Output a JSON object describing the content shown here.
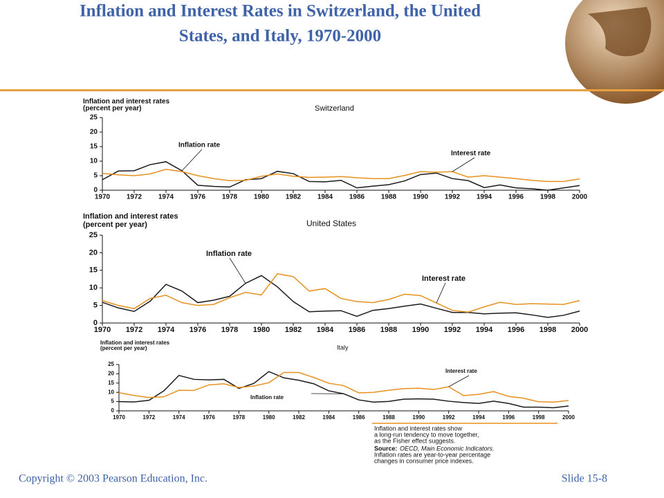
{
  "title": [
    "Inflation and Interest Rates in Switzerland, the United",
    "States, and Italy, 1970-2000"
  ],
  "footer": {
    "copyright": "Copyright © 2003 Pearson Education, Inc.",
    "slide": "Slide 15-8"
  },
  "note": {
    "lines": [
      "Inflation and interest rates show",
      "a long-run tendency to move together,",
      "as the Fisher effect suggests."
    ],
    "source_label": "Source:",
    "source_text": "OECD, Main Economic Indicators.",
    "extra": [
      "Inflation rates are year-to-year percentage",
      "changes in consumer price indexes."
    ]
  },
  "chart_data": [
    {
      "type": "line",
      "title": "Switzerland",
      "y_label": [
        "Inflation and interest rates",
        "(percent per year)"
      ],
      "x": [
        1970,
        1971,
        1972,
        1973,
        1974,
        1975,
        1976,
        1977,
        1978,
        1979,
        1980,
        1981,
        1982,
        1983,
        1984,
        1985,
        1986,
        1987,
        1988,
        1989,
        1990,
        1991,
        1992,
        1993,
        1994,
        1995,
        1996,
        1997,
        1998,
        1999,
        2000
      ],
      "xlim": [
        1970,
        2000
      ],
      "xticks": [
        1970,
        1972,
        1974,
        1976,
        1978,
        1980,
        1982,
        1984,
        1986,
        1988,
        1990,
        1992,
        1994,
        1996,
        1998,
        2000
      ],
      "ylim": [
        0,
        25
      ],
      "yticks": [
        0,
        5,
        10,
        15,
        20,
        25
      ],
      "series": [
        {
          "name": "Inflation rate",
          "color": "#1a1a1a",
          "values": [
            3.6,
            6.6,
            6.7,
            8.8,
            9.8,
            6.7,
            1.7,
            1.3,
            1.1,
            3.6,
            4.0,
            6.5,
            5.7,
            3.0,
            2.9,
            3.4,
            0.8,
            1.4,
            1.9,
            3.2,
            5.4,
            5.9,
            4.0,
            3.3,
            0.9,
            1.8,
            0.8,
            0.5,
            0.0,
            0.8,
            1.6
          ]
        },
        {
          "name": "Interest rate",
          "color": "#e8901e",
          "values": [
            5.8,
            5.3,
            5.0,
            5.6,
            7.2,
            6.4,
            5.0,
            4.0,
            3.3,
            3.4,
            4.8,
            5.6,
            4.8,
            4.4,
            4.5,
            4.7,
            4.3,
            4.0,
            4.0,
            5.1,
            6.4,
            6.2,
            6.4,
            4.5,
            5.0,
            4.5,
            4.0,
            3.4,
            3.0,
            3.0,
            3.9
          ]
        }
      ]
    },
    {
      "type": "line",
      "title": "United States",
      "y_label": [
        "Inflation and interest rates",
        "(percent per year)"
      ],
      "x": [
        1970,
        1971,
        1972,
        1973,
        1974,
        1975,
        1976,
        1977,
        1978,
        1979,
        1980,
        1981,
        1982,
        1983,
        1984,
        1985,
        1986,
        1987,
        1988,
        1989,
        1990,
        1991,
        1992,
        1993,
        1994,
        1995,
        1996,
        1997,
        1998,
        1999,
        2000
      ],
      "xlim": [
        1970,
        2000
      ],
      "xticks": [
        1970,
        1972,
        1974,
        1976,
        1978,
        1980,
        1982,
        1984,
        1986,
        1988,
        1990,
        1992,
        1994,
        1996,
        1998,
        2000
      ],
      "ylim": [
        0,
        25
      ],
      "yticks": [
        0,
        5,
        10,
        15,
        20,
        25
      ],
      "series": [
        {
          "name": "Inflation rate",
          "color": "#1a1a1a",
          "values": [
            5.9,
            4.3,
            3.3,
            6.2,
            11.0,
            9.1,
            5.8,
            6.5,
            7.6,
            11.3,
            13.5,
            10.3,
            6.1,
            3.2,
            3.4,
            3.5,
            1.9,
            3.6,
            4.1,
            4.8,
            5.4,
            4.2,
            3.0,
            3.0,
            2.6,
            2.8,
            2.9,
            2.3,
            1.6,
            2.2,
            3.4
          ]
        },
        {
          "name": "Interest rate",
          "color": "#e8901e",
          "values": [
            6.4,
            5.0,
            4.1,
            7.0,
            7.9,
            5.8,
            5.0,
            5.3,
            7.2,
            8.7,
            8.0,
            14.0,
            13.2,
            9.1,
            9.8,
            7.0,
            6.1,
            5.8,
            6.7,
            8.2,
            7.8,
            5.7,
            3.6,
            3.1,
            4.6,
            5.9,
            5.3,
            5.5,
            5.4,
            5.3,
            6.4
          ]
        }
      ]
    },
    {
      "type": "line",
      "title": "Italy",
      "y_label": [
        "Inflation and interest rates",
        "(percent per year)"
      ],
      "x": [
        1970,
        1971,
        1972,
        1973,
        1974,
        1975,
        1976,
        1977,
        1978,
        1979,
        1980,
        1981,
        1982,
        1983,
        1984,
        1985,
        1986,
        1987,
        1988,
        1989,
        1990,
        1991,
        1992,
        1993,
        1994,
        1995,
        1996,
        1997,
        1998,
        1999,
        2000
      ],
      "xlim": [
        1970,
        2000
      ],
      "xticks": [
        1970,
        1972,
        1974,
        1976,
        1978,
        1980,
        1982,
        1984,
        1986,
        1988,
        1990,
        1992,
        1994,
        1996,
        1998,
        2000
      ],
      "ylim": [
        0,
        25
      ],
      "yticks": [
        0,
        5,
        10,
        15,
        20,
        25
      ],
      "series": [
        {
          "name": "Inflation rate",
          "color": "#1a1a1a",
          "values": [
            5.0,
            4.8,
            5.7,
            10.8,
            19.1,
            17.0,
            16.7,
            17.0,
            12.1,
            14.8,
            21.2,
            17.8,
            16.5,
            14.6,
            10.8,
            9.2,
            5.9,
            4.7,
            5.1,
            6.3,
            6.5,
            6.3,
            5.2,
            4.5,
            4.0,
            5.2,
            4.0,
            2.0,
            2.0,
            1.7,
            2.6
          ]
        },
        {
          "name": "Interest rate",
          "color": "#e8901e",
          "values": [
            9.8,
            8.3,
            7.2,
            7.6,
            11.1,
            11.0,
            14.0,
            14.6,
            12.6,
            13.4,
            15.2,
            20.7,
            20.7,
            18.0,
            14.9,
            13.6,
            9.7,
            10.0,
            11.1,
            12.0,
            12.2,
            11.5,
            13.0,
            8.2,
            8.9,
            10.4,
            7.8,
            6.8,
            4.9,
            4.7,
            5.6
          ]
        }
      ]
    }
  ]
}
